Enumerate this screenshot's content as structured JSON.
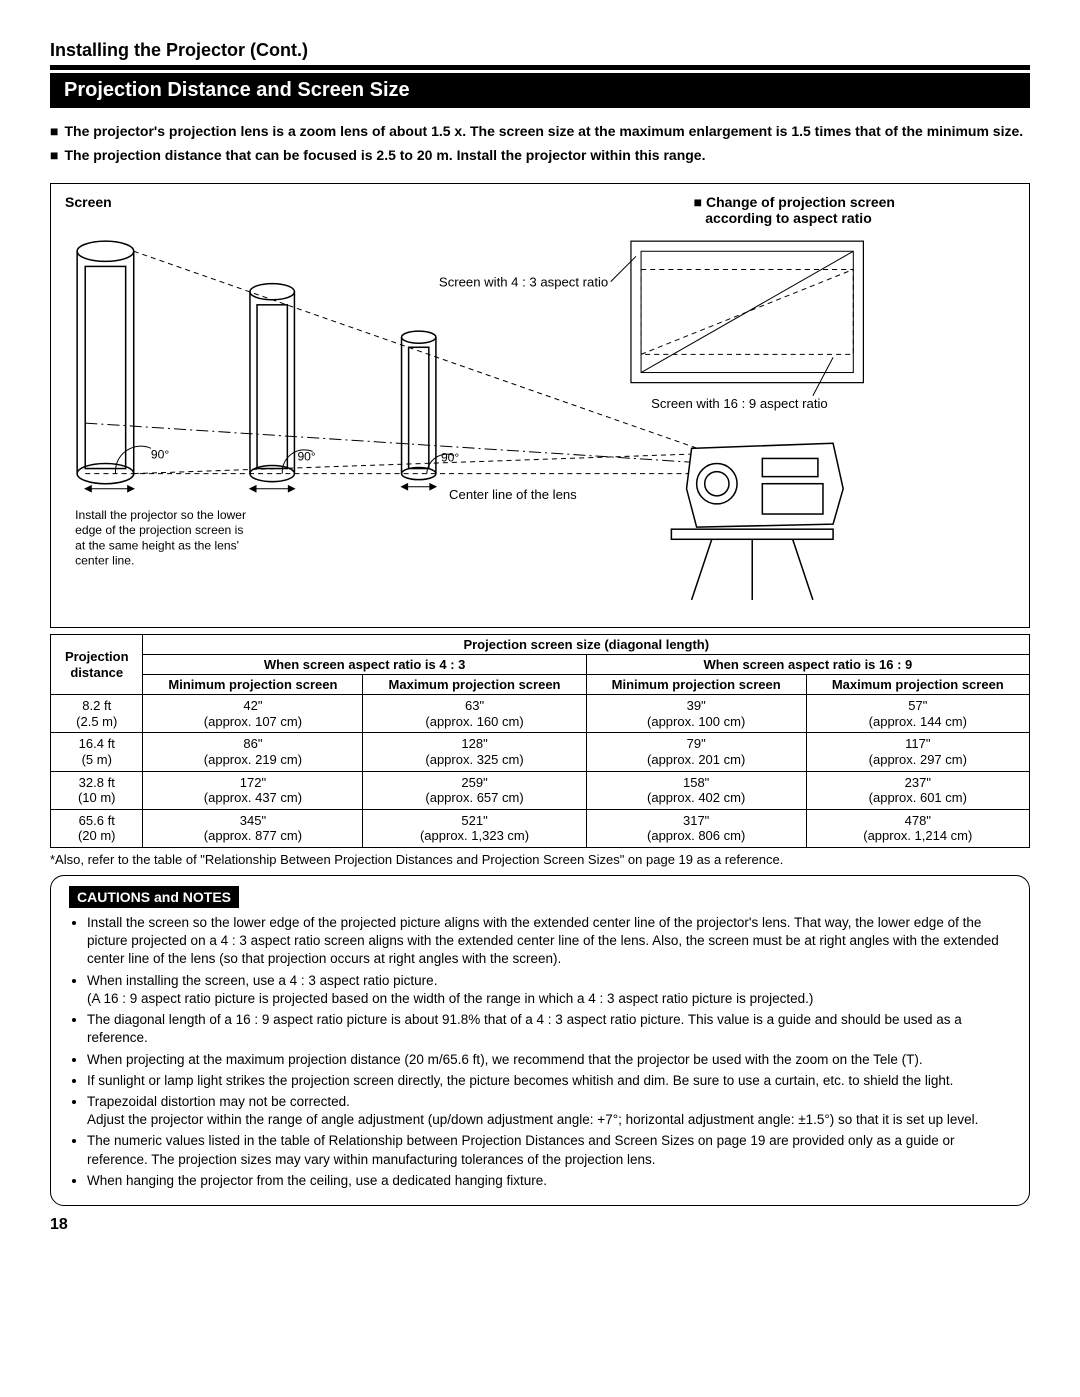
{
  "page_title": "Installing the Projector (Cont.)",
  "section_banner": "Projection Distance and Screen Size",
  "intro": {
    "b1": "The projector's projection lens is a zoom lens of about 1.5 x. The screen size at the maximum enlargement is 1.5 times that of the minimum size.",
    "b2": "The projection distance that can be focused is 2.5 to 20 m. Install the projector within this range."
  },
  "diagram": {
    "screen_label": "Screen",
    "aspect_header1": "Change of projection screen",
    "aspect_header2": "according to aspect ratio",
    "ratio43": "Screen with 4 : 3 aspect ratio",
    "ratio169": "Screen with 16 : 9 aspect ratio",
    "angle": "90°",
    "centerline": "Center line of the lens",
    "install_note_1": "Install the projector so the lower",
    "install_note_2": "edge of the projection screen is",
    "install_note_3": "at the same height as the lens'",
    "install_note_4": "center line."
  },
  "table": {
    "col_dist_1": "Projection",
    "col_dist_2": "distance",
    "col_size_header": "Projection screen size (diagonal length)",
    "col_43": "When screen aspect ratio is 4 : 3",
    "col_169": "When screen aspect ratio is 16 : 9",
    "col_min": "Minimum projection screen",
    "col_max": "Maximum projection screen",
    "rows": [
      {
        "d1": "8.2 ft",
        "d2": "(2.5 m)",
        "a": "42\"",
        "a2": "(approx. 107 cm)",
        "b": "63\"",
        "b2": "(approx. 160 cm)",
        "c": "39\"",
        "c2": "(approx. 100 cm)",
        "e": "57\"",
        "e2": "(approx. 144 cm)"
      },
      {
        "d1": "16.4 ft",
        "d2": "(5 m)",
        "a": "86\"",
        "a2": "(approx. 219 cm)",
        "b": "128\"",
        "b2": "(approx. 325 cm)",
        "c": "79\"",
        "c2": "(approx. 201 cm)",
        "e": "117\"",
        "e2": "(approx. 297 cm)"
      },
      {
        "d1": "32.8 ft",
        "d2": "(10 m)",
        "a": "172\"",
        "a2": "(approx. 437 cm)",
        "b": "259\"",
        "b2": "(approx. 657 cm)",
        "c": "158\"",
        "c2": "(approx. 402 cm)",
        "e": "237\"",
        "e2": "(approx. 601 cm)"
      },
      {
        "d1": "65.6 ft",
        "d2": "(20 m)",
        "a": "345\"",
        "a2": "(approx. 877 cm)",
        "b": "521\"",
        "b2": "(approx. 1,323 cm)",
        "c": "317\"",
        "c2": "(approx. 806 cm)",
        "e": "478\"",
        "e2": "(approx. 1,214 cm)"
      }
    ]
  },
  "footnote": "*Also, refer to the table of \"Relationship Between Projection Distances and Projection Screen Sizes\" on page 19 as a reference.",
  "cautions": {
    "title": "CAUTIONS and NOTES",
    "items": [
      "Install the screen so the lower edge of the projected picture aligns with the extended center line of the projector's lens. That way, the lower edge of the picture projected on a 4 : 3 aspect ratio screen aligns with the extended center line of the lens. Also, the screen must be at right angles with the extended center line of the lens (so that projection occurs at right angles with the screen).",
      "When installing the screen, use a 4 : 3 aspect ratio picture.\n(A 16 : 9 aspect ratio picture is projected based on the width of the range in which a 4 : 3 aspect ratio picture is projected.)",
      "The diagonal length of a 16 : 9 aspect ratio picture is about 91.8% that of a 4 : 3 aspect ratio picture. This value is a guide and should be used as a reference.",
      "When projecting at the maximum projection distance (20 m/65.6 ft), we recommend that the projector be used with the zoom on the Tele (T).",
      "If sunlight or lamp light strikes the projection screen directly, the picture becomes whitish and dim. Be sure to use a curtain, etc. to shield the light.",
      "Trapezoidal distortion may not be corrected.\nAdjust the projector within the range of angle adjustment (up/down adjustment angle: +7°; horizontal adjustment angle: ±1.5°) so that it is set up level.",
      "The numeric values listed in the table of Relationship between Projection Distances and Screen Sizes on page 19 are provided only as a guide or reference. The projection sizes may vary within manufacturing tolerances of the projection lens.",
      "When hanging the projector from the ceiling, use a dedicated hanging fixture."
    ]
  },
  "page_number": "18",
  "colors": {
    "bg": "#ffffff",
    "fg": "#000000"
  }
}
